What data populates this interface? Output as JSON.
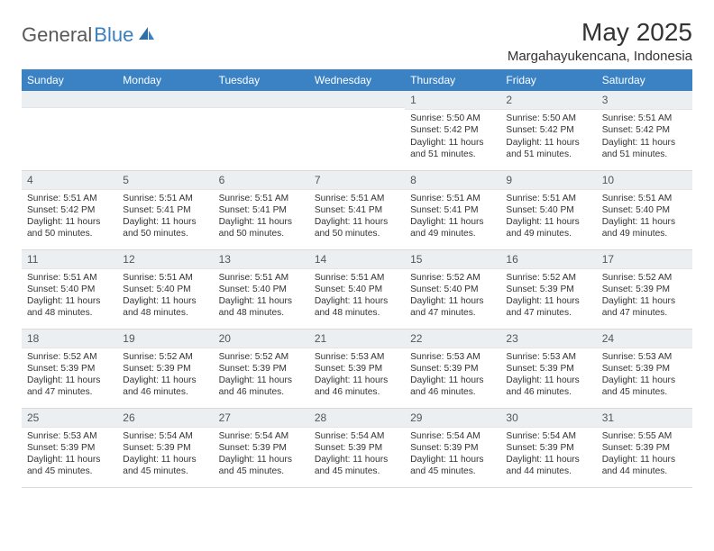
{
  "brand": {
    "part1": "General",
    "part2": "Blue"
  },
  "title": "May 2025",
  "location": "Margahayukencana, Indonesia",
  "colors": {
    "header_bg": "#3a82c4",
    "header_text": "#ffffff",
    "daynum_bg": "#eceff1",
    "border": "#d9d9d9",
    "text": "#333333",
    "logo_gray": "#595959",
    "logo_blue": "#3a7fbf"
  },
  "day_headers": [
    "Sunday",
    "Monday",
    "Tuesday",
    "Wednesday",
    "Thursday",
    "Friday",
    "Saturday"
  ],
  "weeks": [
    [
      {
        "n": "",
        "sr": "",
        "ss": "",
        "dl": ""
      },
      {
        "n": "",
        "sr": "",
        "ss": "",
        "dl": ""
      },
      {
        "n": "",
        "sr": "",
        "ss": "",
        "dl": ""
      },
      {
        "n": "",
        "sr": "",
        "ss": "",
        "dl": ""
      },
      {
        "n": "1",
        "sr": "Sunrise: 5:50 AM",
        "ss": "Sunset: 5:42 PM",
        "dl": "Daylight: 11 hours and 51 minutes."
      },
      {
        "n": "2",
        "sr": "Sunrise: 5:50 AM",
        "ss": "Sunset: 5:42 PM",
        "dl": "Daylight: 11 hours and 51 minutes."
      },
      {
        "n": "3",
        "sr": "Sunrise: 5:51 AM",
        "ss": "Sunset: 5:42 PM",
        "dl": "Daylight: 11 hours and 51 minutes."
      }
    ],
    [
      {
        "n": "4",
        "sr": "Sunrise: 5:51 AM",
        "ss": "Sunset: 5:42 PM",
        "dl": "Daylight: 11 hours and 50 minutes."
      },
      {
        "n": "5",
        "sr": "Sunrise: 5:51 AM",
        "ss": "Sunset: 5:41 PM",
        "dl": "Daylight: 11 hours and 50 minutes."
      },
      {
        "n": "6",
        "sr": "Sunrise: 5:51 AM",
        "ss": "Sunset: 5:41 PM",
        "dl": "Daylight: 11 hours and 50 minutes."
      },
      {
        "n": "7",
        "sr": "Sunrise: 5:51 AM",
        "ss": "Sunset: 5:41 PM",
        "dl": "Daylight: 11 hours and 50 minutes."
      },
      {
        "n": "8",
        "sr": "Sunrise: 5:51 AM",
        "ss": "Sunset: 5:41 PM",
        "dl": "Daylight: 11 hours and 49 minutes."
      },
      {
        "n": "9",
        "sr": "Sunrise: 5:51 AM",
        "ss": "Sunset: 5:40 PM",
        "dl": "Daylight: 11 hours and 49 minutes."
      },
      {
        "n": "10",
        "sr": "Sunrise: 5:51 AM",
        "ss": "Sunset: 5:40 PM",
        "dl": "Daylight: 11 hours and 49 minutes."
      }
    ],
    [
      {
        "n": "11",
        "sr": "Sunrise: 5:51 AM",
        "ss": "Sunset: 5:40 PM",
        "dl": "Daylight: 11 hours and 48 minutes."
      },
      {
        "n": "12",
        "sr": "Sunrise: 5:51 AM",
        "ss": "Sunset: 5:40 PM",
        "dl": "Daylight: 11 hours and 48 minutes."
      },
      {
        "n": "13",
        "sr": "Sunrise: 5:51 AM",
        "ss": "Sunset: 5:40 PM",
        "dl": "Daylight: 11 hours and 48 minutes."
      },
      {
        "n": "14",
        "sr": "Sunrise: 5:51 AM",
        "ss": "Sunset: 5:40 PM",
        "dl": "Daylight: 11 hours and 48 minutes."
      },
      {
        "n": "15",
        "sr": "Sunrise: 5:52 AM",
        "ss": "Sunset: 5:40 PM",
        "dl": "Daylight: 11 hours and 47 minutes."
      },
      {
        "n": "16",
        "sr": "Sunrise: 5:52 AM",
        "ss": "Sunset: 5:39 PM",
        "dl": "Daylight: 11 hours and 47 minutes."
      },
      {
        "n": "17",
        "sr": "Sunrise: 5:52 AM",
        "ss": "Sunset: 5:39 PM",
        "dl": "Daylight: 11 hours and 47 minutes."
      }
    ],
    [
      {
        "n": "18",
        "sr": "Sunrise: 5:52 AM",
        "ss": "Sunset: 5:39 PM",
        "dl": "Daylight: 11 hours and 47 minutes."
      },
      {
        "n": "19",
        "sr": "Sunrise: 5:52 AM",
        "ss": "Sunset: 5:39 PM",
        "dl": "Daylight: 11 hours and 46 minutes."
      },
      {
        "n": "20",
        "sr": "Sunrise: 5:52 AM",
        "ss": "Sunset: 5:39 PM",
        "dl": "Daylight: 11 hours and 46 minutes."
      },
      {
        "n": "21",
        "sr": "Sunrise: 5:53 AM",
        "ss": "Sunset: 5:39 PM",
        "dl": "Daylight: 11 hours and 46 minutes."
      },
      {
        "n": "22",
        "sr": "Sunrise: 5:53 AM",
        "ss": "Sunset: 5:39 PM",
        "dl": "Daylight: 11 hours and 46 minutes."
      },
      {
        "n": "23",
        "sr": "Sunrise: 5:53 AM",
        "ss": "Sunset: 5:39 PM",
        "dl": "Daylight: 11 hours and 46 minutes."
      },
      {
        "n": "24",
        "sr": "Sunrise: 5:53 AM",
        "ss": "Sunset: 5:39 PM",
        "dl": "Daylight: 11 hours and 45 minutes."
      }
    ],
    [
      {
        "n": "25",
        "sr": "Sunrise: 5:53 AM",
        "ss": "Sunset: 5:39 PM",
        "dl": "Daylight: 11 hours and 45 minutes."
      },
      {
        "n": "26",
        "sr": "Sunrise: 5:54 AM",
        "ss": "Sunset: 5:39 PM",
        "dl": "Daylight: 11 hours and 45 minutes."
      },
      {
        "n": "27",
        "sr": "Sunrise: 5:54 AM",
        "ss": "Sunset: 5:39 PM",
        "dl": "Daylight: 11 hours and 45 minutes."
      },
      {
        "n": "28",
        "sr": "Sunrise: 5:54 AM",
        "ss": "Sunset: 5:39 PM",
        "dl": "Daylight: 11 hours and 45 minutes."
      },
      {
        "n": "29",
        "sr": "Sunrise: 5:54 AM",
        "ss": "Sunset: 5:39 PM",
        "dl": "Daylight: 11 hours and 45 minutes."
      },
      {
        "n": "30",
        "sr": "Sunrise: 5:54 AM",
        "ss": "Sunset: 5:39 PM",
        "dl": "Daylight: 11 hours and 44 minutes."
      },
      {
        "n": "31",
        "sr": "Sunrise: 5:55 AM",
        "ss": "Sunset: 5:39 PM",
        "dl": "Daylight: 11 hours and 44 minutes."
      }
    ]
  ]
}
